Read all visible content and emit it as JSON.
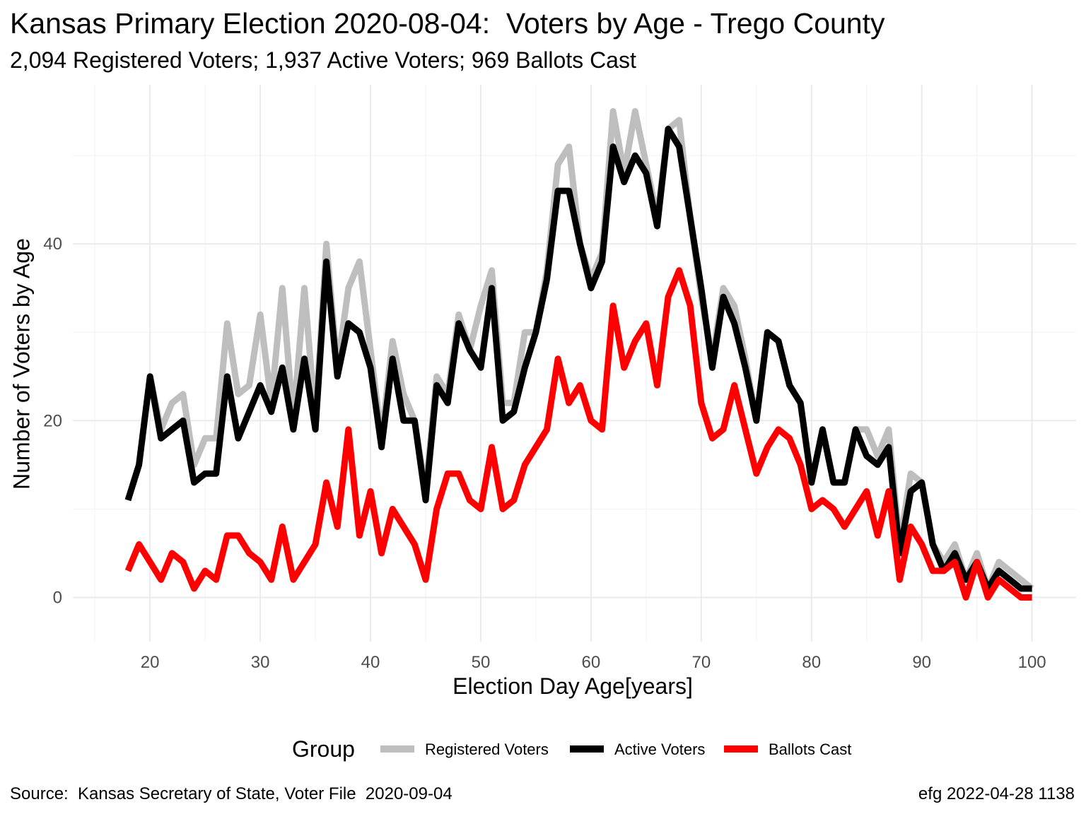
{
  "chart_data": {
    "type": "line",
    "title": "Kansas Primary Election 2020-08-04:  Voters by Age - Trego County",
    "subtitle": "2,094 Registered Voters; 1,937 Active Voters; 969 Ballots Cast",
    "xlabel": "Election Day Age[years]",
    "ylabel": "Number of Voters by Age",
    "xlim": [
      13,
      104
    ],
    "ylim": [
      -5,
      58
    ],
    "x_ticks": [
      20,
      30,
      40,
      50,
      60,
      70,
      80,
      90,
      100
    ],
    "y_ticks": [
      0,
      20,
      40
    ],
    "grid": true,
    "legend": {
      "title": "Group",
      "position": "bottom"
    },
    "x": [
      18,
      19,
      20,
      21,
      22,
      23,
      24,
      25,
      26,
      27,
      28,
      29,
      30,
      31,
      32,
      33,
      34,
      35,
      36,
      37,
      38,
      39,
      40,
      41,
      42,
      43,
      44,
      45,
      46,
      47,
      48,
      49,
      50,
      51,
      52,
      53,
      54,
      55,
      56,
      57,
      58,
      59,
      60,
      61,
      62,
      63,
      64,
      65,
      66,
      67,
      68,
      69,
      70,
      71,
      72,
      73,
      74,
      75,
      76,
      77,
      78,
      79,
      80,
      81,
      82,
      83,
      84,
      85,
      86,
      87,
      88,
      89,
      90,
      91,
      92,
      93,
      94,
      95,
      96,
      97,
      98,
      99,
      100
    ],
    "series": [
      {
        "name": "Registered Voters",
        "color": "#bebebe",
        "values": [
          11,
          15,
          25,
          19,
          22,
          23,
          15,
          18,
          18,
          31,
          23,
          24,
          32,
          22,
          35,
          20,
          35,
          20,
          40,
          26,
          35,
          38,
          28,
          18,
          29,
          23,
          20,
          12,
          25,
          23,
          32,
          28,
          33,
          37,
          22,
          22,
          30,
          30,
          37,
          49,
          51,
          40,
          36,
          39,
          55,
          48,
          55,
          49,
          43,
          53,
          54,
          43,
          34,
          27,
          35,
          33,
          27,
          20,
          30,
          29,
          24,
          22,
          13,
          19,
          13,
          13,
          19,
          19,
          16,
          19,
          6,
          14,
          13,
          6,
          4,
          6,
          2,
          5,
          1,
          4,
          3,
          2,
          1
        ]
      },
      {
        "name": "Active Voters",
        "color": "#000000",
        "values": [
          11,
          15,
          25,
          18,
          19,
          20,
          13,
          14,
          14,
          25,
          18,
          21,
          24,
          21,
          26,
          19,
          27,
          19,
          38,
          25,
          31,
          30,
          26,
          17,
          27,
          20,
          20,
          11,
          24,
          22,
          31,
          28,
          26,
          35,
          20,
          21,
          26,
          30,
          36,
          46,
          46,
          40,
          35,
          38,
          51,
          47,
          50,
          48,
          42,
          53,
          51,
          43,
          35,
          26,
          34,
          31,
          26,
          20,
          30,
          29,
          24,
          22,
          13,
          19,
          13,
          13,
          19,
          16,
          15,
          17,
          5,
          12,
          13,
          6,
          3,
          5,
          2,
          4,
          1,
          3,
          2,
          1,
          1
        ]
      },
      {
        "name": "Ballots Cast",
        "color": "#ff0000",
        "values": [
          3,
          6,
          4,
          2,
          5,
          4,
          1,
          3,
          2,
          7,
          7,
          5,
          4,
          2,
          8,
          2,
          4,
          6,
          13,
          8,
          19,
          7,
          12,
          5,
          10,
          8,
          6,
          2,
          10,
          14,
          14,
          11,
          10,
          17,
          10,
          11,
          15,
          17,
          19,
          27,
          22,
          24,
          20,
          19,
          33,
          26,
          29,
          31,
          24,
          34,
          37,
          33,
          22,
          18,
          19,
          24,
          19,
          14,
          17,
          19,
          18,
          15,
          10,
          11,
          10,
          8,
          10,
          12,
          7,
          12,
          2,
          8,
          6,
          3,
          3,
          4,
          0,
          4,
          0,
          2,
          1,
          0,
          0
        ]
      }
    ]
  },
  "caption": {
    "source": "Source:  Kansas Secretary of State, Voter File  2020-09-04",
    "credit": "efg 2022-04-28 1138"
  }
}
